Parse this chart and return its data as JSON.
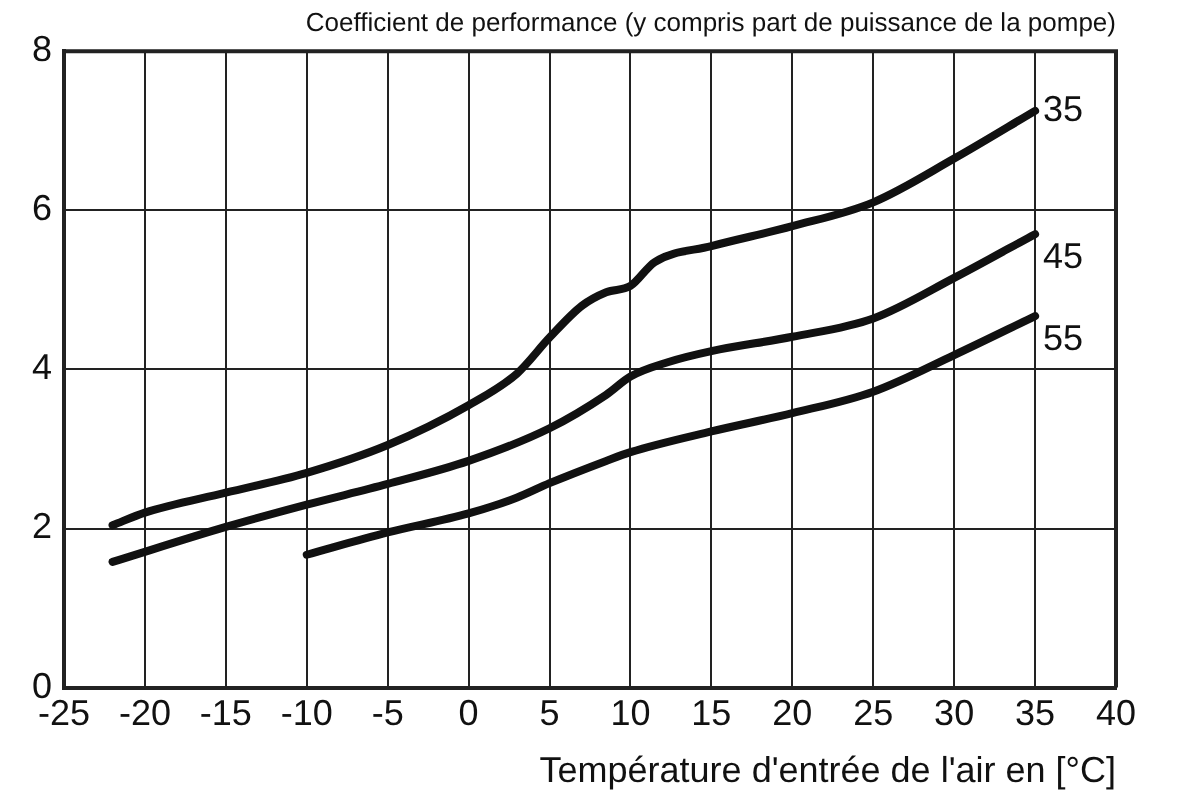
{
  "chart_data": {
    "type": "line",
    "title": "Coefficient de performance (y compris part de puissance de la pompe)",
    "xlabel": "Température d'entrée de l'air en [°C]",
    "xlim": [
      -25,
      40
    ],
    "xticks": [
      -25,
      -20,
      -15,
      -10,
      -5,
      0,
      5,
      10,
      15,
      20,
      25,
      30,
      35,
      40
    ],
    "ylim": [
      0,
      8
    ],
    "yticks": [
      0,
      2,
      4,
      6,
      8
    ],
    "grid": true,
    "legend": false,
    "marker": "none",
    "line_style": "solid",
    "series": [
      {
        "name": "35",
        "color": "#111111",
        "x": [
          -22,
          -20,
          -15,
          -10,
          -5,
          0,
          3,
          5,
          7,
          8.5,
          10,
          11.5,
          15,
          20,
          25,
          30,
          35
        ],
        "values": [
          2.04,
          2.2,
          2.45,
          2.7,
          3.05,
          3.55,
          3.95,
          4.4,
          4.8,
          4.97,
          5.05,
          5.35,
          5.55,
          5.8,
          6.1,
          6.65,
          7.25
        ]
      },
      {
        "name": "45",
        "color": "#111111",
        "x": [
          -22,
          -15,
          -10,
          -5,
          0,
          5,
          8.5,
          10,
          12.3,
          15,
          20,
          25,
          30,
          35
        ],
        "values": [
          1.58,
          2.02,
          2.3,
          2.56,
          2.85,
          3.26,
          3.68,
          3.91,
          4.09,
          4.23,
          4.41,
          4.64,
          5.15,
          5.7
        ]
      },
      {
        "name": "55",
        "color": "#111111",
        "x": [
          -10,
          -5,
          0,
          3,
          5,
          8.5,
          10,
          15,
          20,
          25,
          30,
          35
        ],
        "values": [
          1.67,
          1.95,
          2.19,
          2.39,
          2.57,
          2.85,
          2.96,
          3.22,
          3.45,
          3.72,
          4.18,
          4.67
        ]
      }
    ]
  }
}
